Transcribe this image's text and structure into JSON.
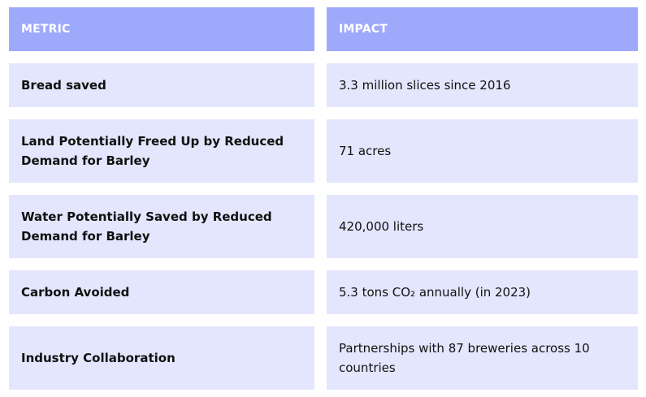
{
  "table": {
    "header": {
      "metric": "METRIC",
      "impact": "IMPACT"
    },
    "rows": [
      {
        "metric": "Bread saved",
        "impact": "3.3 million slices since 2016"
      },
      {
        "metric": "Land Potentially Freed Up by Reduced Demand for Barley",
        "impact": "71 acres"
      },
      {
        "metric": "Water Potentially Saved by Reduced Demand for Barley",
        "impact": "420,000 liters"
      },
      {
        "metric": "Carbon Avoided",
        "impact": "5.3 tons CO₂ annually (in 2023)"
      },
      {
        "metric": "Industry Collaboration",
        "impact": "Partnerships with 87 breweries across 10 countries"
      }
    ]
  },
  "colors": {
    "header_bg": "#9ea9fb",
    "row_bg": "#e3e6fc",
    "header_text": "#ffffff",
    "body_text": "#111111"
  }
}
